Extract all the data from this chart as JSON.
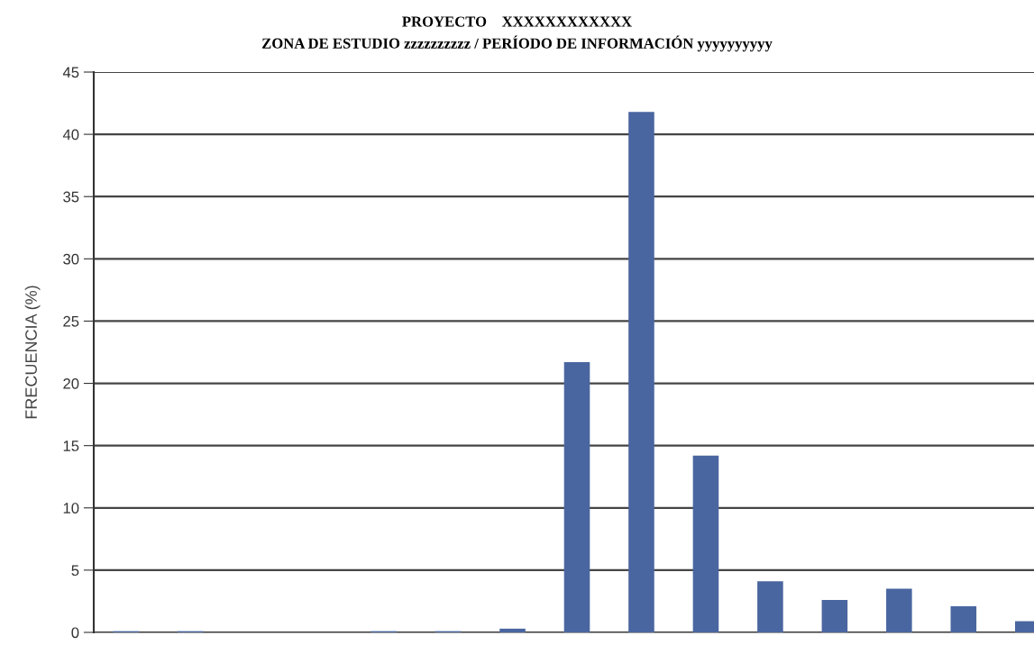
{
  "chart_data": {
    "type": "bar",
    "title": "PROYECTO    XXXXXXXXXXXX",
    "subtitle": "ZONA DE ESTUDIO zzzzzzzzzz / PERÍODO DE INFORMACIÓN yyyyyyyyyy",
    "ylabel": "FRECUENCIA (%)",
    "categories": [
      null,
      null,
      null,
      null,
      null,
      null,
      null,
      null,
      null,
      null,
      null,
      null,
      null,
      null,
      null
    ],
    "values": [
      0.1,
      0.1,
      0,
      0,
      0.1,
      0.1,
      0.3,
      21.7,
      41.8,
      14.2,
      4.1,
      2.6,
      3.5,
      2.1,
      0.9
    ],
    "color": "#4a66a0",
    "ylim": [
      0,
      45
    ],
    "yticks": [
      0,
      5,
      10,
      15,
      20,
      25,
      30,
      35,
      40,
      45
    ],
    "grid": "y",
    "tick_labels": "y"
  }
}
